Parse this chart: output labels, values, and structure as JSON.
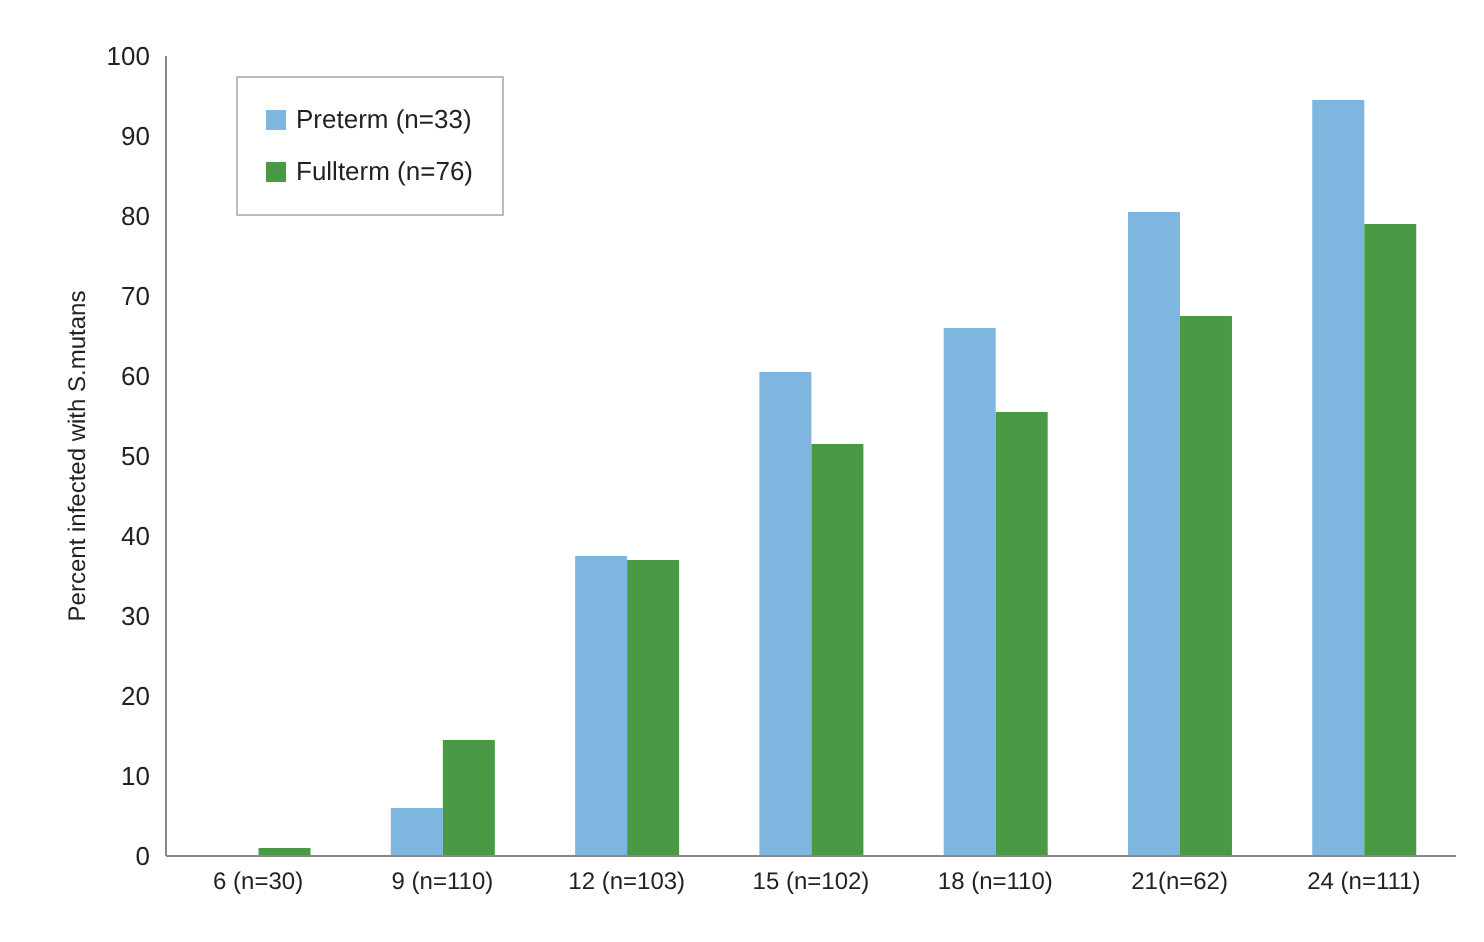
{
  "chart_data": {
    "type": "bar",
    "ylabel": "Percent infected with S.mutans",
    "categories": [
      "6 (n=30)",
      "9 (n=110)",
      "12 (n=103)",
      "15 (n=102)",
      "18 (n=110)",
      "21(n=62)",
      "24 (n=111)"
    ],
    "series": [
      {
        "name": "Preterm (n=33)",
        "color": "#7fb6e0",
        "values": [
          0,
          6,
          37.5,
          60.5,
          66,
          80.5,
          94.5
        ]
      },
      {
        "name": "Fullterm (n=76)",
        "color": "#4a9a45",
        "values": [
          1,
          14.5,
          37,
          51.5,
          55.5,
          67.5,
          79
        ]
      }
    ],
    "ylim": [
      0,
      100
    ],
    "yticks": [
      0,
      10,
      20,
      30,
      40,
      50,
      60,
      70,
      80,
      90,
      100
    ],
    "legend": "top left"
  }
}
